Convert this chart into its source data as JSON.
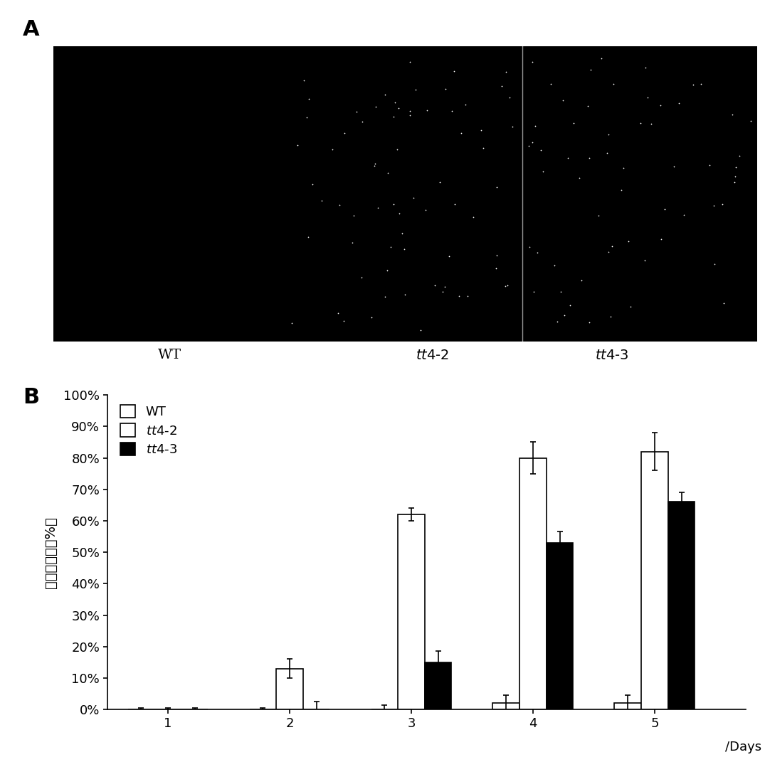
{
  "panel_A": {
    "label": "A",
    "WT_label": "WT",
    "tt42_label": "tt4-2",
    "tt43_label": "tt4-3",
    "dots_color": "#ffffff",
    "n_dots_tt42": 70,
    "n_dots_tt43": 60,
    "dot_size": 1.5
  },
  "panel_B": {
    "label": "B",
    "days": [
      1,
      2,
      3,
      4,
      5
    ],
    "xlabel": "/Days",
    "ylabel": "种子萌发率（%）",
    "WT_values": [
      0.0,
      0.0,
      0.0,
      2.0,
      2.0
    ],
    "WT_errors": [
      0.5,
      0.5,
      1.5,
      2.5,
      2.5
    ],
    "tt42_values": [
      0.0,
      13.0,
      62.0,
      80.0,
      82.0
    ],
    "tt42_errors": [
      0.5,
      3.0,
      2.0,
      5.0,
      6.0
    ],
    "tt43_values": [
      0.0,
      0.0,
      15.0,
      53.0,
      66.0
    ],
    "tt43_errors": [
      0.5,
      2.5,
      3.5,
      3.5,
      3.0
    ],
    "WT_color": "#ffffff",
    "tt42_color": "#ffffff",
    "tt43_color": "#000000",
    "bar_edge_color": "#000000",
    "bar_width": 0.22,
    "xlim": [
      0.5,
      5.75
    ],
    "ylim": [
      0,
      100
    ]
  }
}
